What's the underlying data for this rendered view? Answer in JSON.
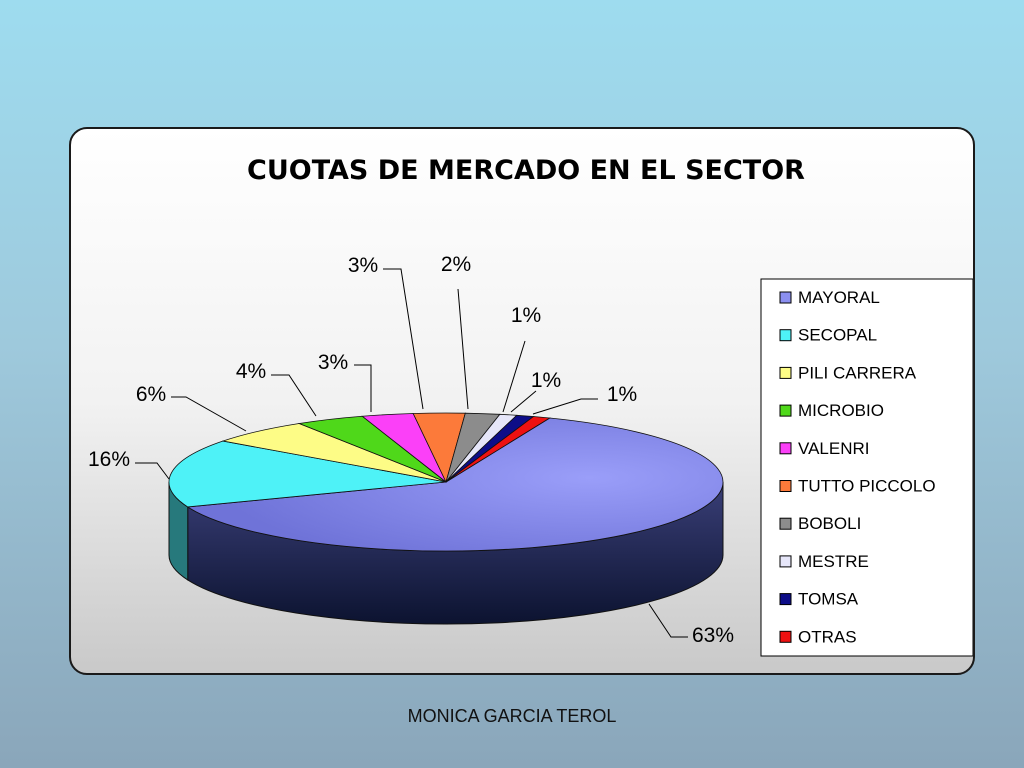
{
  "footer": "MONICA GARCIA TEROL",
  "chart_data": {
    "type": "pie",
    "title": "CUOTAS DE MERCADO EN EL SECTOR",
    "legend_position": "right",
    "slices": [
      {
        "label": "MAYORAL",
        "value": 63,
        "value_label": "63%",
        "color": "#8b8ff0"
      },
      {
        "label": "SECOPAL",
        "value": 16,
        "value_label": "16%",
        "color": "#4ef2f7"
      },
      {
        "label": "PILI CARRERA",
        "value": 6,
        "value_label": "6%",
        "color": "#fdfc86"
      },
      {
        "label": "MICROBIO",
        "value": 4,
        "value_label": "4%",
        "color": "#4fd81a"
      },
      {
        "label": "VALENRI",
        "value": 3,
        "value_label": "3%",
        "color": "#fb40f8"
      },
      {
        "label": "TUTTO PICCOLO",
        "value": 3,
        "value_label": "3%",
        "color": "#fc7a3a"
      },
      {
        "label": "BOBOLI",
        "value": 2,
        "value_label": "2%",
        "color": "#8c8c8c"
      },
      {
        "label": "MESTRE",
        "value": 1,
        "value_label": "1%",
        "color": "#e6e6f9"
      },
      {
        "label": "TOMSA",
        "value": 1,
        "value_label": "1%",
        "color": "#0d0d88"
      },
      {
        "label": "OTRAS",
        "value": 1,
        "value_label": "1%",
        "color": "#ee1111"
      }
    ]
  }
}
